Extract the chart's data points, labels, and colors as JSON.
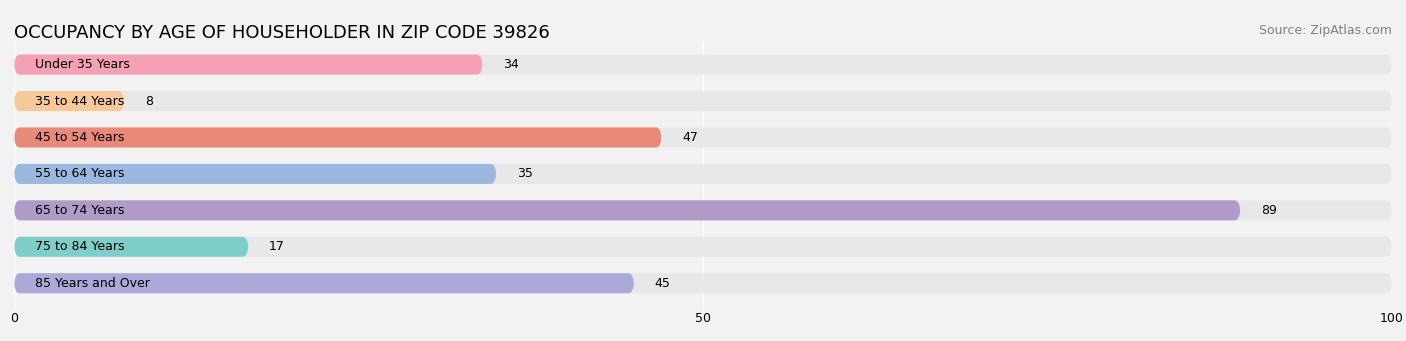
{
  "title": "OCCUPANCY BY AGE OF HOUSEHOLDER IN ZIP CODE 39826",
  "source": "Source: ZipAtlas.com",
  "categories": [
    "Under 35 Years",
    "35 to 44 Years",
    "45 to 54 Years",
    "55 to 64 Years",
    "65 to 74 Years",
    "75 to 84 Years",
    "85 Years and Over"
  ],
  "values": [
    34,
    8,
    47,
    35,
    89,
    17,
    45
  ],
  "bar_colors": [
    "#f4a0b5",
    "#f7c99a",
    "#e8897a",
    "#9ab8e0",
    "#b09ac8",
    "#7ecfca",
    "#aaaad8"
  ],
  "xlim": [
    0,
    100
  ],
  "xticks": [
    0,
    50,
    100
  ],
  "bar_height": 0.55,
  "background_color": "#f2f2f2",
  "bar_background_color": "#e8e8e8",
  "title_fontsize": 13,
  "label_fontsize": 9,
  "value_fontsize": 9,
  "source_fontsize": 9
}
